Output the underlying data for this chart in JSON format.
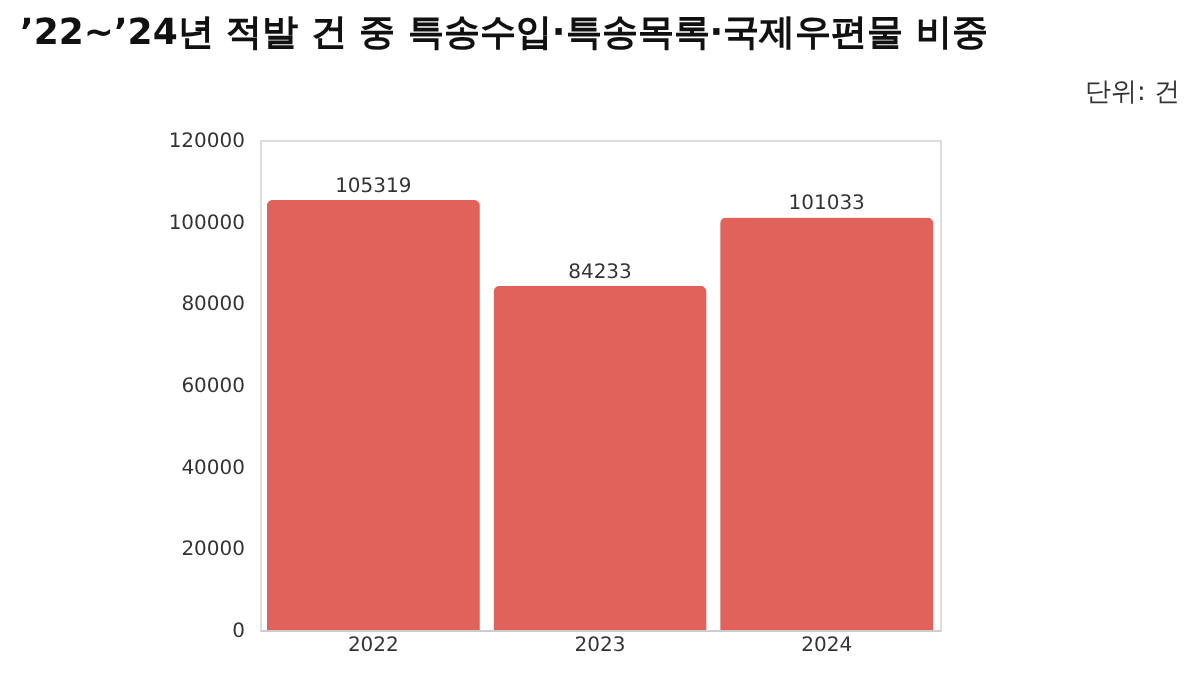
{
  "chart_data": {
    "type": "bar",
    "title": "’22~’24년 적발 건 중 특송수입·특송목록·국제우편물 비중",
    "subtitle": "단위: 건",
    "categories": [
      "2022",
      "2023",
      "2024"
    ],
    "values": [
      105319,
      84233,
      101033
    ],
    "color": "#e0625a",
    "ylim": [
      0,
      120000
    ],
    "yticks": [
      0,
      20000,
      40000,
      60000,
      80000,
      100000,
      120000
    ],
    "grid": false,
    "data_labels": true
  }
}
